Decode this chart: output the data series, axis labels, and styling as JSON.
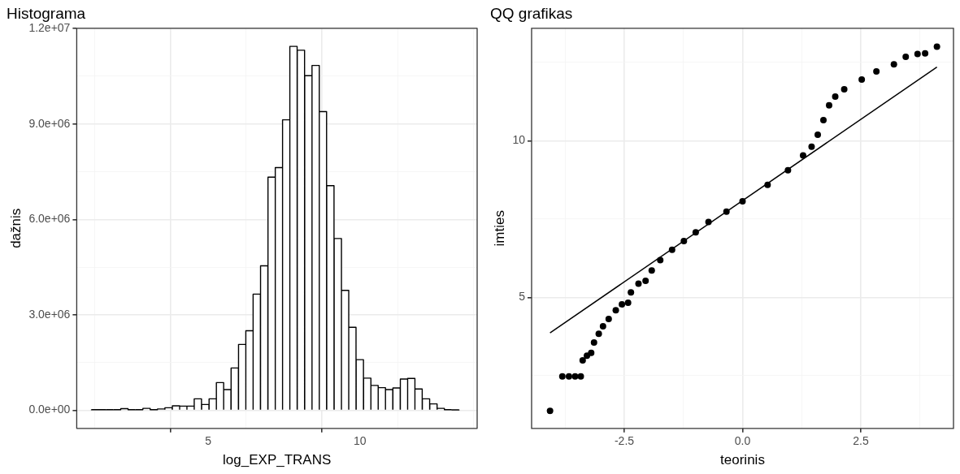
{
  "chart_data": [
    {
      "type": "histogram",
      "title": "Histograma",
      "xlabel": "log_EXP_TRANS",
      "ylabel": "dažnis",
      "color": "#ffffff",
      "grid": true,
      "legend": false,
      "bins": [
        1.15,
        1.39,
        1.63,
        1.88,
        2.12,
        2.36,
        2.6,
        2.85,
        3.09,
        3.33,
        3.57,
        3.82,
        4.06,
        4.3,
        4.54,
        4.78,
        5.03,
        5.27,
        5.51,
        5.75,
        6.0,
        6.24,
        6.48,
        6.72,
        6.97,
        7.21,
        7.45,
        7.69,
        7.93,
        8.18,
        8.42,
        8.66,
        8.9,
        9.15,
        9.39,
        9.63,
        9.87,
        10.12,
        10.36,
        10.6,
        10.84,
        11.08,
        11.33,
        11.57,
        11.81,
        12.05,
        12.3,
        12.54,
        12.78,
        13.02,
        13.27
      ],
      "values": [
        20000,
        20000,
        20000,
        20000,
        50000,
        20000,
        20000,
        60000,
        20000,
        40000,
        80000,
        140000,
        130000,
        130000,
        360000,
        180000,
        360000,
        870000,
        650000,
        1330000,
        2070000,
        2500000,
        3650000,
        4540000,
        7330000,
        7630000,
        9130000,
        11440000,
        11320000,
        10520000,
        10840000,
        9390000,
        7060000,
        5400000,
        3770000,
        2610000,
        1590000,
        1010000,
        780000,
        710000,
        650000,
        700000,
        980000,
        1000000,
        670000,
        360000,
        200000,
        60000,
        20000,
        10000
      ],
      "xlim": [
        0.67,
        13.86
      ],
      "ylim": [
        -570000,
        12010000
      ],
      "xticks": [
        5,
        10
      ],
      "yticks": [
        {
          "value": 0,
          "label": "0.0e+00"
        },
        {
          "value": 3000000,
          "label": "3.0e+06"
        },
        {
          "value": 6000000,
          "label": "6.0e+06"
        },
        {
          "value": 9000000,
          "label": "9.0e+06"
        },
        {
          "value": 12000000,
          "label": "1.2e+07"
        }
      ]
    },
    {
      "type": "scatter",
      "title": "QQ grafikas",
      "xlabel": "teorinis",
      "ylabel": "imties",
      "grid": true,
      "legend": false,
      "xlim": [
        -4.46,
        4.46
      ],
      "ylim": [
        0.82,
        13.59
      ],
      "xticks": [
        -2.5,
        {
          "value": 0,
          "label": "0.0"
        },
        2.5
      ],
      "yticks": [
        5,
        10
      ],
      "series": [
        {
          "type": "scatter",
          "color": "#000000",
          "marker": "circle",
          "x": [
            -4.07,
            -3.81,
            -3.67,
            -3.54,
            -3.42,
            -3.38,
            -3.29,
            -3.2,
            -3.14,
            -3.04,
            -2.95,
            -2.83,
            -2.68,
            -2.55,
            -2.42,
            -2.36,
            -2.2,
            -2.05,
            -1.92,
            -1.74,
            -1.49,
            -1.24,
            -0.99,
            -0.72,
            -0.34,
            0.0,
            0.53,
            0.96,
            1.28,
            1.46,
            1.59,
            1.71,
            1.83,
            1.96,
            2.15,
            2.52,
            2.83,
            3.2,
            3.45,
            3.7,
            3.86,
            4.11
          ],
          "values": [
            1.38,
            2.48,
            2.48,
            2.48,
            2.48,
            2.99,
            3.14,
            3.23,
            3.56,
            3.84,
            4.08,
            4.31,
            4.59,
            4.78,
            4.83,
            5.16,
            5.44,
            5.53,
            5.86,
            6.19,
            6.52,
            6.8,
            7.08,
            7.41,
            7.74,
            8.07,
            8.59,
            9.06,
            9.53,
            9.81,
            10.19,
            10.66,
            11.13,
            11.41,
            11.64,
            11.95,
            12.21,
            12.44,
            12.68,
            12.77,
            12.79,
            13.0
          ]
        },
        {
          "type": "line",
          "color": "#000000",
          "marker": "none",
          "x": [
            -4.07,
            4.11
          ],
          "values": [
            3.87,
            12.35
          ]
        }
      ]
    }
  ]
}
